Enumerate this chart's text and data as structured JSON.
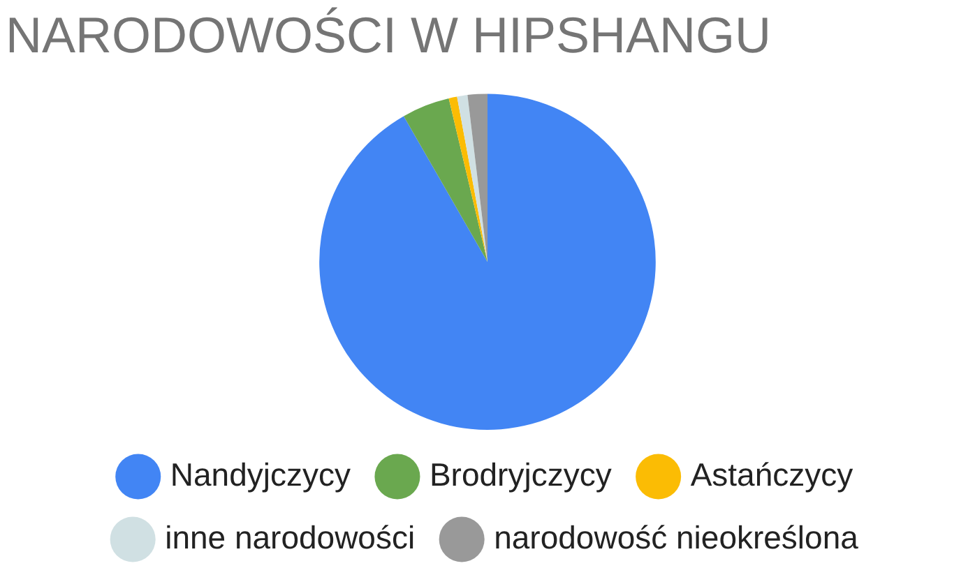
{
  "chart_data": {
    "type": "pie",
    "title": "NARODOWOŚCI W HIPSHANGU",
    "categories": [
      "Nandyjczycy",
      "Brodryjczycy",
      "Astańczycy",
      "inne narodowości",
      "narodowość nieokreślona"
    ],
    "values": [
      91.7,
      4.6,
      0.8,
      1.0,
      1.9
    ],
    "colors": [
      "#4285f4",
      "#6aa84f",
      "#fbbc04",
      "#d0e0e3",
      "#999999"
    ],
    "legend": "bottom"
  }
}
